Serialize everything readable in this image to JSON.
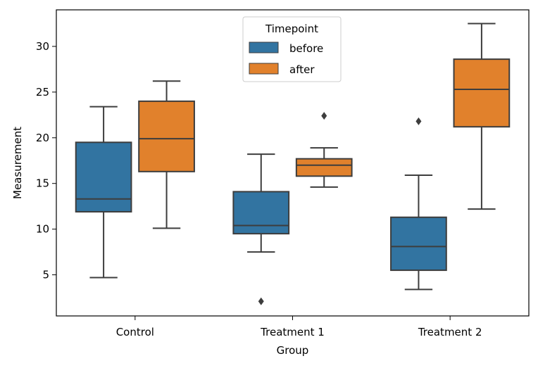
{
  "chart_data": {
    "type": "box",
    "title": "",
    "xlabel": "Group",
    "ylabel": "Measurement",
    "categories": [
      "Control",
      "Treatment 1",
      "Treatment 2"
    ],
    "yticks": [
      5,
      10,
      15,
      20,
      25,
      30
    ],
    "ylim": [
      0.5,
      34
    ],
    "legend": {
      "title": "Timepoint",
      "placement": "top-center",
      "entries": [
        "before",
        "after"
      ]
    },
    "colors": {
      "before": "#3274a1",
      "after": "#e1812c",
      "line": "#3d3d3d"
    },
    "series": [
      {
        "name": "before",
        "boxes": [
          {
            "category": "Control",
            "whisker_low": 4.7,
            "q1": 11.9,
            "median": 13.3,
            "q3": 19.5,
            "whisker_high": 23.4,
            "outliers": []
          },
          {
            "category": "Treatment 1",
            "whisker_low": 7.5,
            "q1": 9.5,
            "median": 10.4,
            "q3": 14.1,
            "whisker_high": 18.2,
            "outliers": [
              2.1
            ]
          },
          {
            "category": "Treatment 2",
            "whisker_low": 3.4,
            "q1": 5.5,
            "median": 8.1,
            "q3": 11.3,
            "whisker_high": 15.9,
            "outliers": [
              21.8
            ]
          }
        ]
      },
      {
        "name": "after",
        "boxes": [
          {
            "category": "Control",
            "whisker_low": 10.1,
            "q1": 16.3,
            "median": 19.9,
            "q3": 24.0,
            "whisker_high": 26.2,
            "outliers": []
          },
          {
            "category": "Treatment 1",
            "whisker_low": 14.6,
            "q1": 15.8,
            "median": 17.0,
            "q3": 17.7,
            "whisker_high": 18.9,
            "outliers": [
              22.4
            ]
          },
          {
            "category": "Treatment 2",
            "whisker_low": 12.2,
            "q1": 21.2,
            "median": 25.3,
            "q3": 28.6,
            "whisker_high": 32.5,
            "outliers": []
          }
        ]
      }
    ]
  }
}
